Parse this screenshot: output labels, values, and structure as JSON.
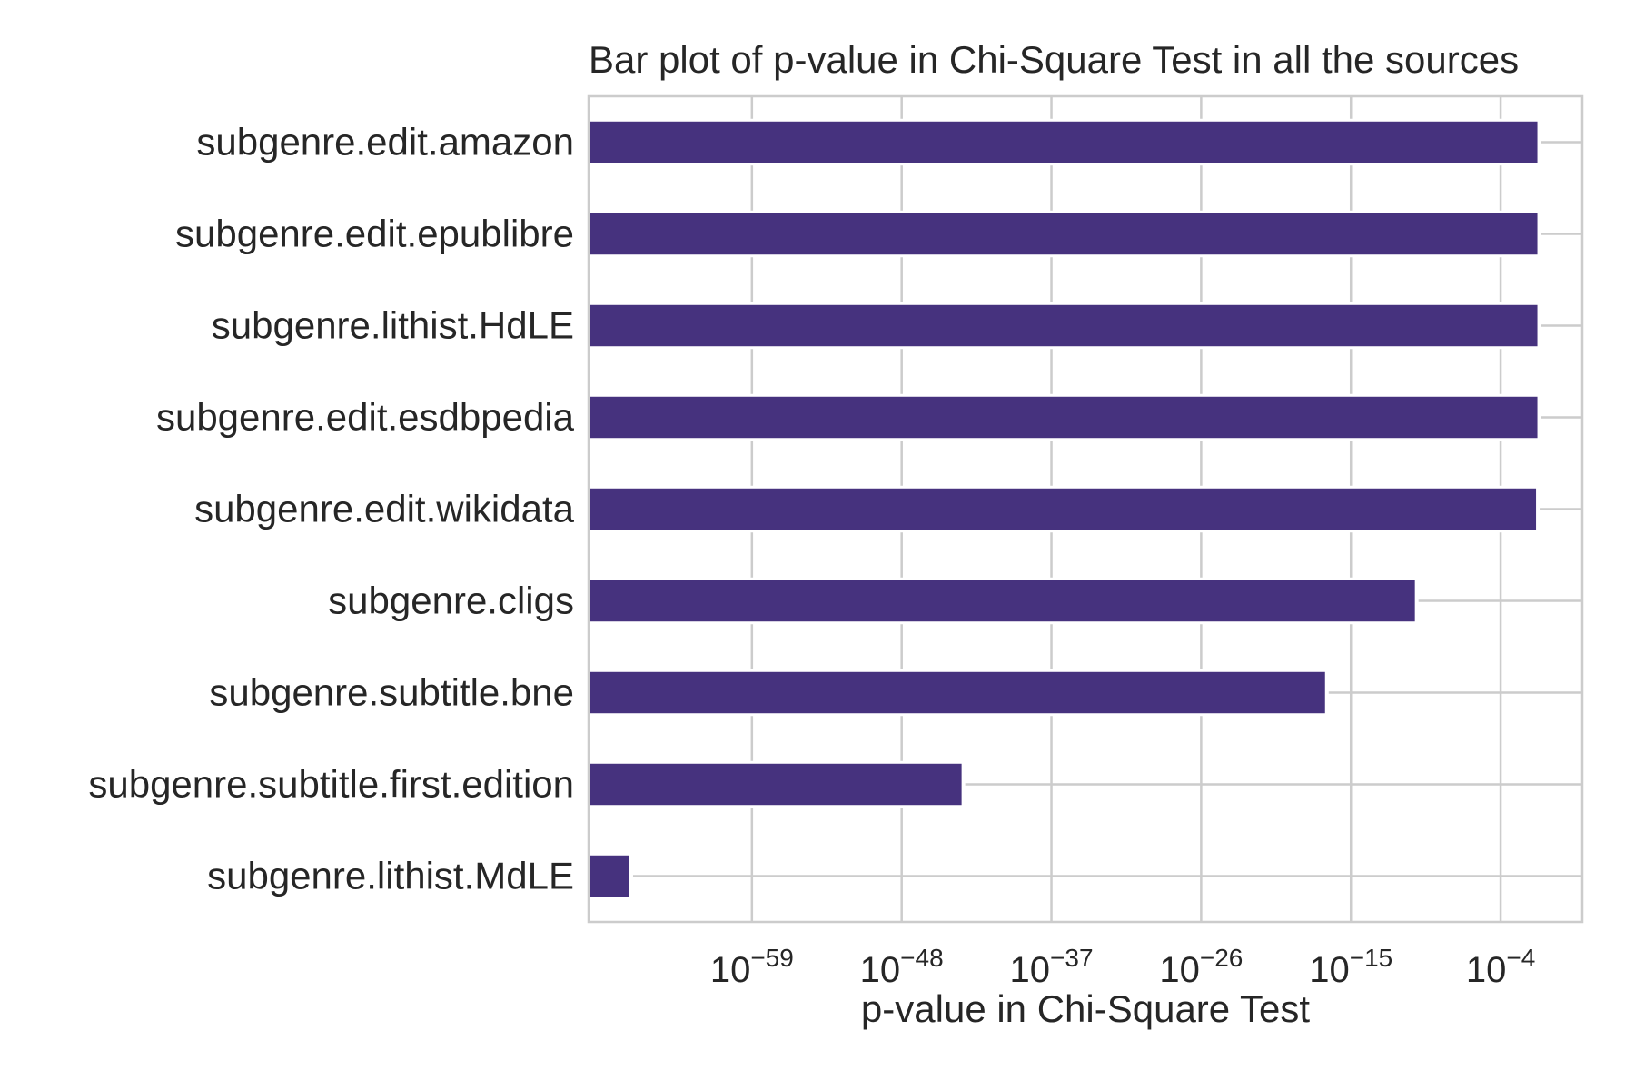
{
  "chart_data": {
    "type": "bar",
    "orientation": "horizontal",
    "title": "Bar plot of p-value in Chi-Square Test in all the sources",
    "xlabel": "p-value in Chi-Square Test",
    "ylabel": "",
    "x_scale": "log",
    "xlim_exponent": [
      -71,
      2
    ],
    "x_ticks": [
      {
        "exp": "−59",
        "value": -59
      },
      {
        "exp": "−48",
        "value": -48
      },
      {
        "exp": "−37",
        "value": -37
      },
      {
        "exp": "−26",
        "value": -26
      },
      {
        "exp": "−15",
        "value": -15
      },
      {
        "exp": "−4",
        "value": -4
      }
    ],
    "tick_base": "10",
    "grid": true,
    "bar_color": "#46327e",
    "categories": [
      "subgenre.edit.amazon",
      "subgenre.edit.epublibre",
      "subgenre.lithist.HdLE",
      "subgenre.edit.esdbpedia",
      "subgenre.edit.wikidata",
      "subgenre.cligs",
      "subgenre.subtitle.bne",
      "subgenre.subtitle.first.edition",
      "subgenre.lithist.MdLE"
    ],
    "values_log10": [
      -1.3,
      -1.3,
      -1.3,
      -1.3,
      -1.4,
      -10.3,
      -16.9,
      -43.6,
      -68
    ]
  }
}
